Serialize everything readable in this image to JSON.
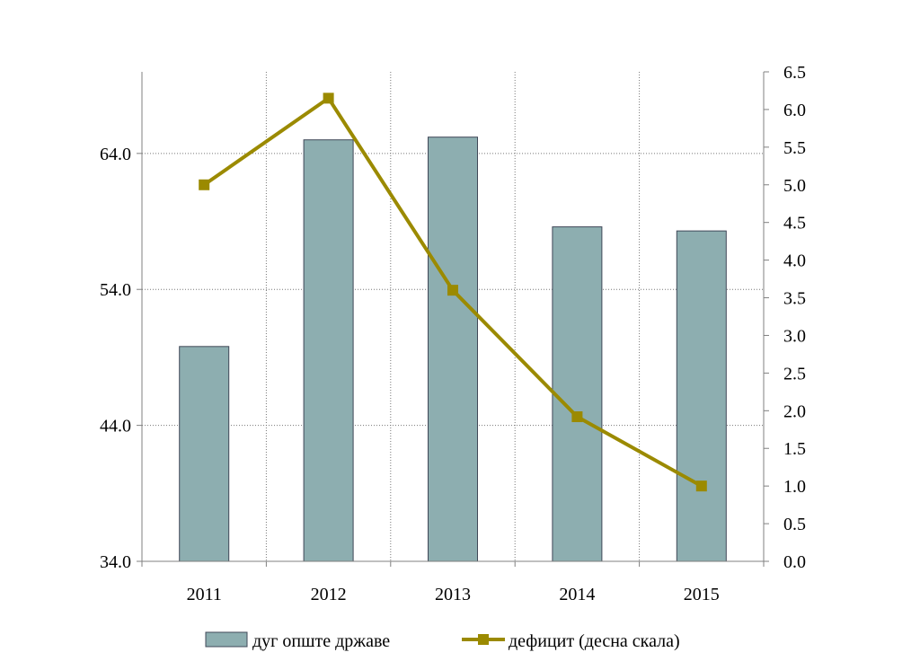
{
  "chart_data": {
    "type": "bar",
    "categories": [
      "2011",
      "2012",
      "2013",
      "2014",
      "2015"
    ],
    "series": [
      {
        "name": "дуг опште државе",
        "type": "bar",
        "axis": "left",
        "values": [
          49.8,
          65.0,
          65.2,
          58.6,
          58.3
        ],
        "color": "#8daeb0"
      },
      {
        "name": "дефицит (десна скала)",
        "type": "line",
        "axis": "right",
        "values": [
          5.0,
          6.15,
          3.6,
          1.92,
          1.0
        ],
        "color": "#9b8a00"
      }
    ],
    "y_left": {
      "lim": [
        34,
        70
      ],
      "ticks": [
        "34.0",
        "44.0",
        "54.0",
        "64.0"
      ]
    },
    "y_right": {
      "lim": [
        0,
        6.5
      ],
      "ticks": [
        "0.0",
        "0.5",
        "1.0",
        "1.5",
        "2.0",
        "2.5",
        "3.0",
        "3.5",
        "4.0",
        "4.5",
        "5.0",
        "5.5",
        "6.0",
        "6.5"
      ]
    },
    "grid": true,
    "legend": "bottom"
  }
}
